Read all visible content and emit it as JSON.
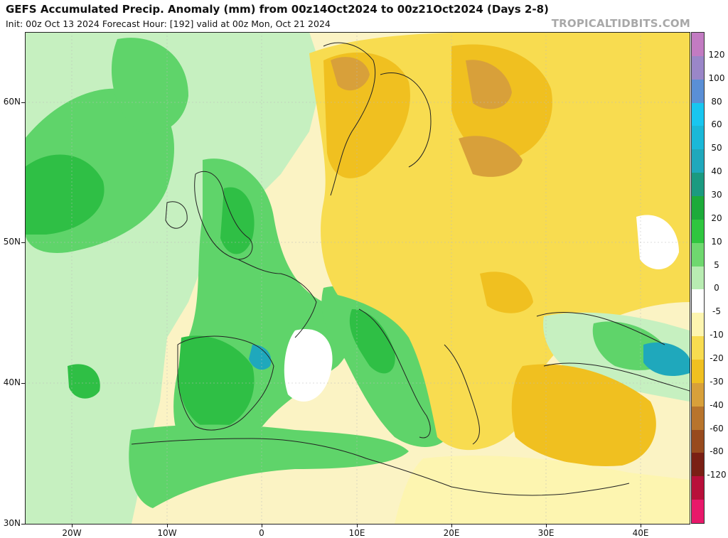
{
  "header": {
    "title": "GEFS Accumulated Precip. Anomaly (mm) from 00z14Oct2024 to 00z21Oct2024 (Days 2-8)",
    "subtitle": "Init: 00z Oct 13 2024   Forecast Hour: [192]   valid at 00z Mon, Oct 21 2024",
    "brand": "TROPICALTIDBITS.COM"
  },
  "axes": {
    "lat_labels": [
      "60N",
      "50N",
      "40N",
      "30N"
    ],
    "lon_labels": [
      "20W",
      "10W",
      "0",
      "10E",
      "20E",
      "30E",
      "40E"
    ]
  },
  "colorbar": {
    "labels": [
      "120",
      "100",
      "80",
      "60",
      "50",
      "40",
      "30",
      "20",
      "10",
      "5",
      "0",
      "-5",
      "-10",
      "-20",
      "-30",
      "-40",
      "-60",
      "-80",
      "-120"
    ],
    "colors": [
      "#c27bc2",
      "#9a86c8",
      "#5a8fd6",
      "#18c6f0",
      "#1ab8d8",
      "#1fa8bc",
      "#1b9a80",
      "#1cab3a",
      "#2fc63f",
      "#6fd86f",
      "#b8ecb2",
      "#ffffff",
      "#fdf5b0",
      "#f8dc50",
      "#f0c020",
      "#d8a03a",
      "#b8742c",
      "#984a1e",
      "#7a1f14",
      "#b80f3a",
      "#e8186a"
    ]
  }
}
